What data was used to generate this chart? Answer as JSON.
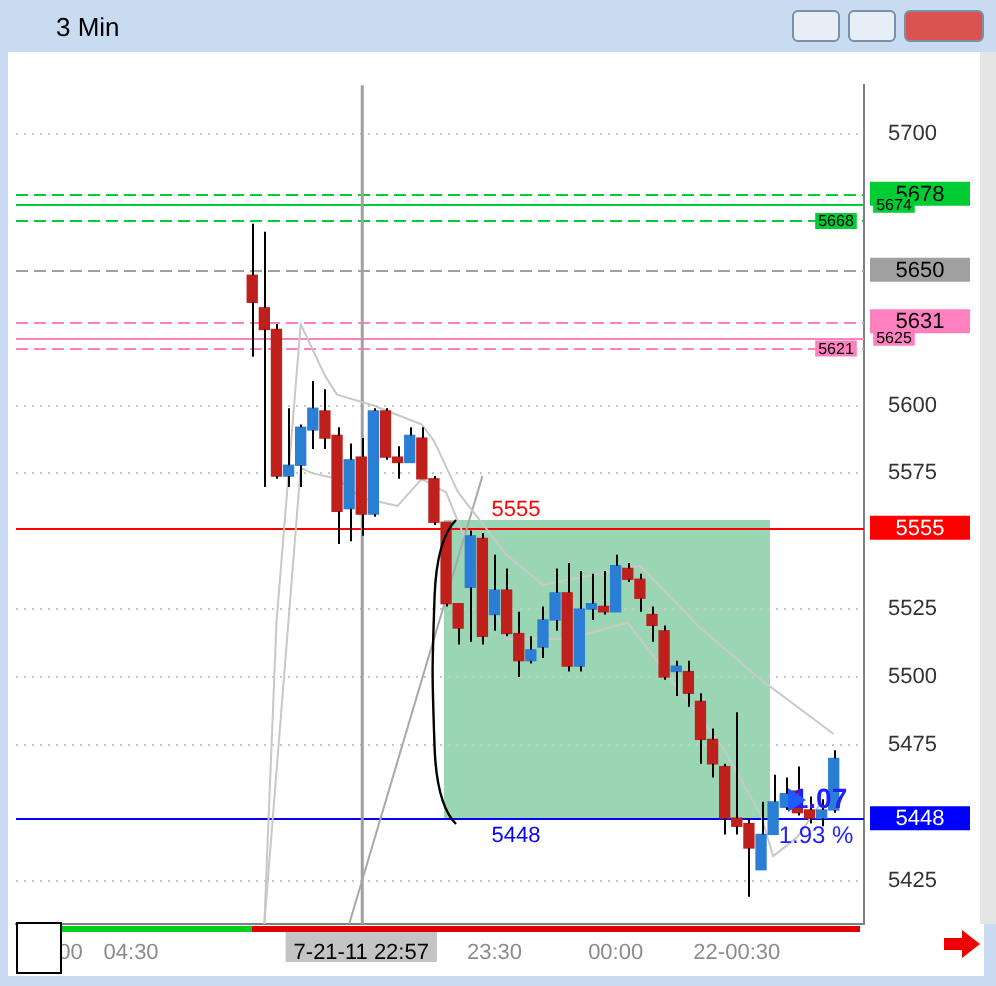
{
  "chart_data": {
    "type": "candlestick",
    "title": "3 Min",
    "categories": [
      null,
      null,
      null,
      null,
      "00",
      null,
      null,
      null,
      null,
      "04:30",
      null,
      null,
      null,
      null,
      null,
      null,
      null,
      null,
      null,
      null,
      null,
      null,
      null,
      null,
      null,
      null,
      null,
      null,
      "7-21-11 22:57",
      null,
      null,
      null,
      null,
      null,
      null,
      null,
      null,
      null,
      null,
      "23:30",
      null,
      null,
      null,
      null,
      null,
      null,
      null,
      null,
      null,
      "00:00",
      null,
      null,
      null,
      null,
      null,
      null,
      null,
      null,
      null,
      "22-00:30",
      null,
      null,
      null,
      null,
      null,
      null,
      null,
      null,
      null,
      null
    ],
    "ohlc": [
      null,
      null,
      null,
      null,
      null,
      null,
      null,
      null,
      null,
      null,
      null,
      null,
      null,
      null,
      null,
      null,
      null,
      null,
      null,
      [
        5648,
        5667,
        5618,
        5638
      ],
      [
        5636,
        5664,
        5570,
        5628
      ],
      [
        5628,
        5630,
        5573,
        5574
      ],
      [
        5574,
        5599,
        5570,
        5578
      ],
      [
        5578,
        5593,
        5570,
        5592
      ],
      [
        5591,
        5609,
        5584,
        5599
      ],
      [
        5598,
        5606,
        5584,
        5588
      ],
      [
        5589,
        5592,
        5549,
        5561
      ],
      [
        5562,
        5586,
        5550,
        5580
      ],
      [
        5581,
        5588,
        5552,
        5560
      ],
      [
        5560,
        5599,
        5559,
        5598
      ],
      [
        5598,
        5599,
        5580,
        5581
      ],
      [
        5581,
        5585,
        5573,
        5579
      ],
      [
        5579,
        5592,
        5579,
        5589
      ],
      [
        5588,
        5592,
        5573,
        5573
      ],
      [
        5573,
        5574,
        5556,
        5557
      ],
      [
        5557,
        5557,
        5526,
        5527
      ],
      [
        5527,
        5527,
        5512,
        5518
      ],
      [
        5533,
        5554,
        5513,
        5552
      ],
      [
        5551,
        5553,
        5512,
        5515
      ],
      [
        5523,
        5545,
        5517,
        5532
      ],
      [
        5532,
        5540,
        5515,
        5516
      ],
      [
        5516,
        5524,
        5500,
        5506
      ],
      [
        5506,
        5515,
        5505,
        5510
      ],
      [
        5511,
        5526,
        5507,
        5521
      ],
      [
        5521,
        5540,
        5517,
        5531
      ],
      [
        5531,
        5542,
        5502,
        5504
      ],
      [
        5504,
        5539,
        5502,
        5525
      ],
      [
        5525,
        5538,
        5521,
        5527
      ],
      [
        5526,
        5539,
        5523,
        5524
      ],
      [
        5524,
        5545,
        5524,
        5541
      ],
      [
        5540,
        5542,
        5535,
        5536
      ],
      [
        5536,
        5538,
        5524,
        5529
      ],
      [
        5523,
        5526,
        5513,
        5519
      ],
      [
        5517,
        5519,
        5499,
        5500
      ],
      [
        5502,
        5506,
        5493,
        5504
      ],
      [
        5502,
        5506,
        5489,
        5494
      ],
      [
        5491,
        5494,
        5468,
        5477
      ],
      [
        5477,
        5481,
        5463,
        5468
      ],
      [
        5467,
        5468,
        5442,
        5448
      ],
      [
        5448,
        5487,
        5442,
        5445
      ],
      [
        5446,
        5448,
        5419,
        5437
      ],
      [
        5429,
        5454,
        5429,
        5442
      ],
      [
        5442,
        5464,
        5442,
        5454
      ],
      [
        5452,
        5463,
        5451,
        5457
      ],
      [
        5458,
        5467,
        5449,
        5450
      ],
      [
        5451,
        5456,
        5446,
        5448
      ],
      [
        5448,
        5455,
        5445,
        5451
      ],
      [
        5451,
        5473,
        5450,
        5470
      ],
      null,
      null
    ],
    "series": [
      {
        "type": "line",
        "color": "#c8c8c8",
        "values": [
          null,
          null,
          null,
          null,
          null,
          null,
          null,
          null,
          null,
          null,
          null,
          null,
          null,
          null,
          null,
          null,
          null,
          null,
          null,
          null,
          5409,
          5520,
          null,
          5630,
          null,
          5611,
          5604,
          null,
          null,
          5600,
          null,
          null,
          null,
          5593,
          5587,
          null,
          5568,
          null,
          null,
          null,
          5545,
          null,
          null,
          5534,
          null,
          null,
          null,
          null,
          null,
          null,
          null,
          5541,
          null,
          null,
          null,
          null,
          5518,
          null,
          null,
          null,
          null,
          5499,
          null,
          null,
          null,
          null,
          null,
          5479,
          null,
          null
        ]
      },
      {
        "type": "line",
        "color": "#c8c8c8",
        "values": [
          null,
          null,
          null,
          null,
          null,
          null,
          null,
          null,
          null,
          null,
          null,
          null,
          null,
          null,
          null,
          null,
          null,
          null,
          null,
          null,
          5409,
          null,
          null,
          5577,
          5575,
          null,
          5573,
          null,
          5566,
          null,
          null,
          5563,
          null,
          5573,
          null,
          5568,
          null,
          null,
          null,
          null,
          5514,
          null,
          null,
          null,
          null,
          5514,
          null,
          null,
          null,
          null,
          5520,
          null,
          null,
          null,
          null,
          null,
          null,
          null,
          5473,
          null,
          null,
          5449,
          5434,
          null,
          5441,
          null,
          5454,
          null,
          null,
          null
        ]
      },
      {
        "type": "line",
        "color": "#a8a8a8",
        "values": [
          null,
          null,
          null,
          null,
          null,
          null,
          null,
          null,
          null,
          null,
          null,
          null,
          null,
          null,
          null,
          null,
          null,
          null,
          null,
          null,
          null,
          null,
          null,
          null,
          null,
          null,
          null,
          5409,
          null,
          null,
          null,
          null,
          null,
          null,
          null,
          null,
          null,
          null,
          5574,
          null,
          null,
          null,
          null,
          null,
          null,
          null,
          null,
          null,
          null,
          null,
          null,
          null,
          null,
          null,
          null,
          null,
          null,
          null,
          null,
          null,
          null,
          null,
          null,
          null,
          null,
          null,
          null,
          null,
          null,
          null
        ]
      }
    ],
    "ylim": [
      5409,
      5718
    ],
    "yticks": [
      5425,
      5475,
      5500,
      5525,
      5575,
      5600,
      5700
    ],
    "grid": "y",
    "legend": false,
    "ref_lines": [
      {
        "axis": "y",
        "value": 5678,
        "label": "5678",
        "color": "#00cc33",
        "line_style": "dashed"
      },
      {
        "axis": "y",
        "value": 5674,
        "label": "5674",
        "color": "#00cc33",
        "line_style": "solid"
      },
      {
        "axis": "y",
        "value": 5668,
        "label": "5668",
        "color": "#00cc33",
        "line_style": "dashed"
      },
      {
        "axis": "y",
        "value": 5650,
        "label": "5650",
        "color": "#a0a0a0",
        "line_style": "dashed"
      },
      {
        "axis": "y",
        "value": 5631,
        "label": "5631",
        "color": "#ff80c0",
        "line_style": "dashed"
      },
      {
        "axis": "y",
        "value": 5625,
        "label": "5625",
        "color": "#ff80c0",
        "line_style": "solid"
      },
      {
        "axis": "y",
        "value": 5621,
        "label": "5621",
        "color": "#ff80c0",
        "line_style": "dashed"
      },
      {
        "axis": "y",
        "value": 5555,
        "label": "5555",
        "color": "#ff0000",
        "line_style": "solid"
      },
      {
        "axis": "y",
        "value": 5448,
        "label": "5448",
        "color": "#0000ff",
        "line_style": "solid"
      },
      {
        "axis": "x",
        "value": "7-21-11 22:57",
        "color": "#a0a0a0",
        "line_style": "solid"
      }
    ],
    "annotations": [
      {
        "text": "5555",
        "y": 5555
      },
      {
        "text": "5448",
        "y": 5448
      },
      "1.07",
      "1.93 %"
    ]
  }
}
